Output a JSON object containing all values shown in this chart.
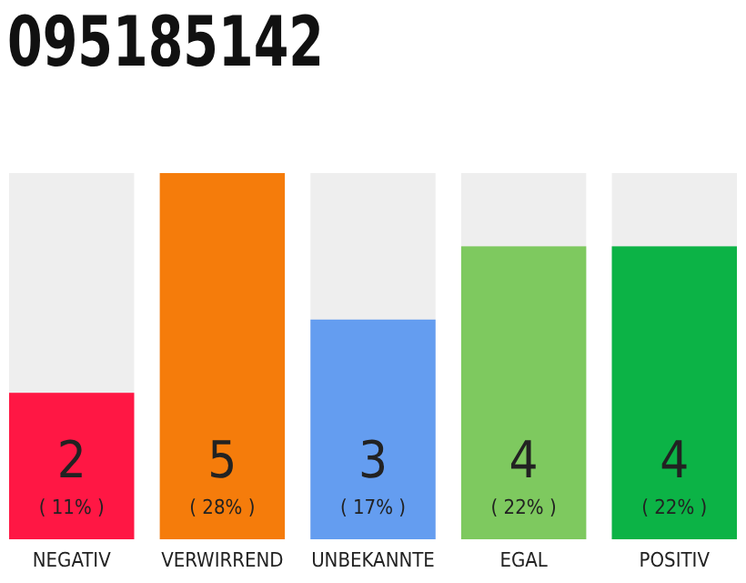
{
  "chart_data": {
    "type": "bar",
    "title": "095185142",
    "categories": [
      "NEGATIV",
      "VERWIRREND",
      "UNBEKANNTE",
      "EGAL",
      "POSITIV"
    ],
    "values": [
      2,
      5,
      3,
      4,
      4
    ],
    "colors": [
      "#ff1744",
      "#f57c0b",
      "#649df0",
      "#7ec95f",
      "#0cb346"
    ],
    "ylim": [
      0,
      5
    ],
    "data_labels": true,
    "annotations": [
      "( 11% )",
      "( 28% )",
      "( 17% )",
      "( 22% )",
      "( 22% )"
    ]
  }
}
